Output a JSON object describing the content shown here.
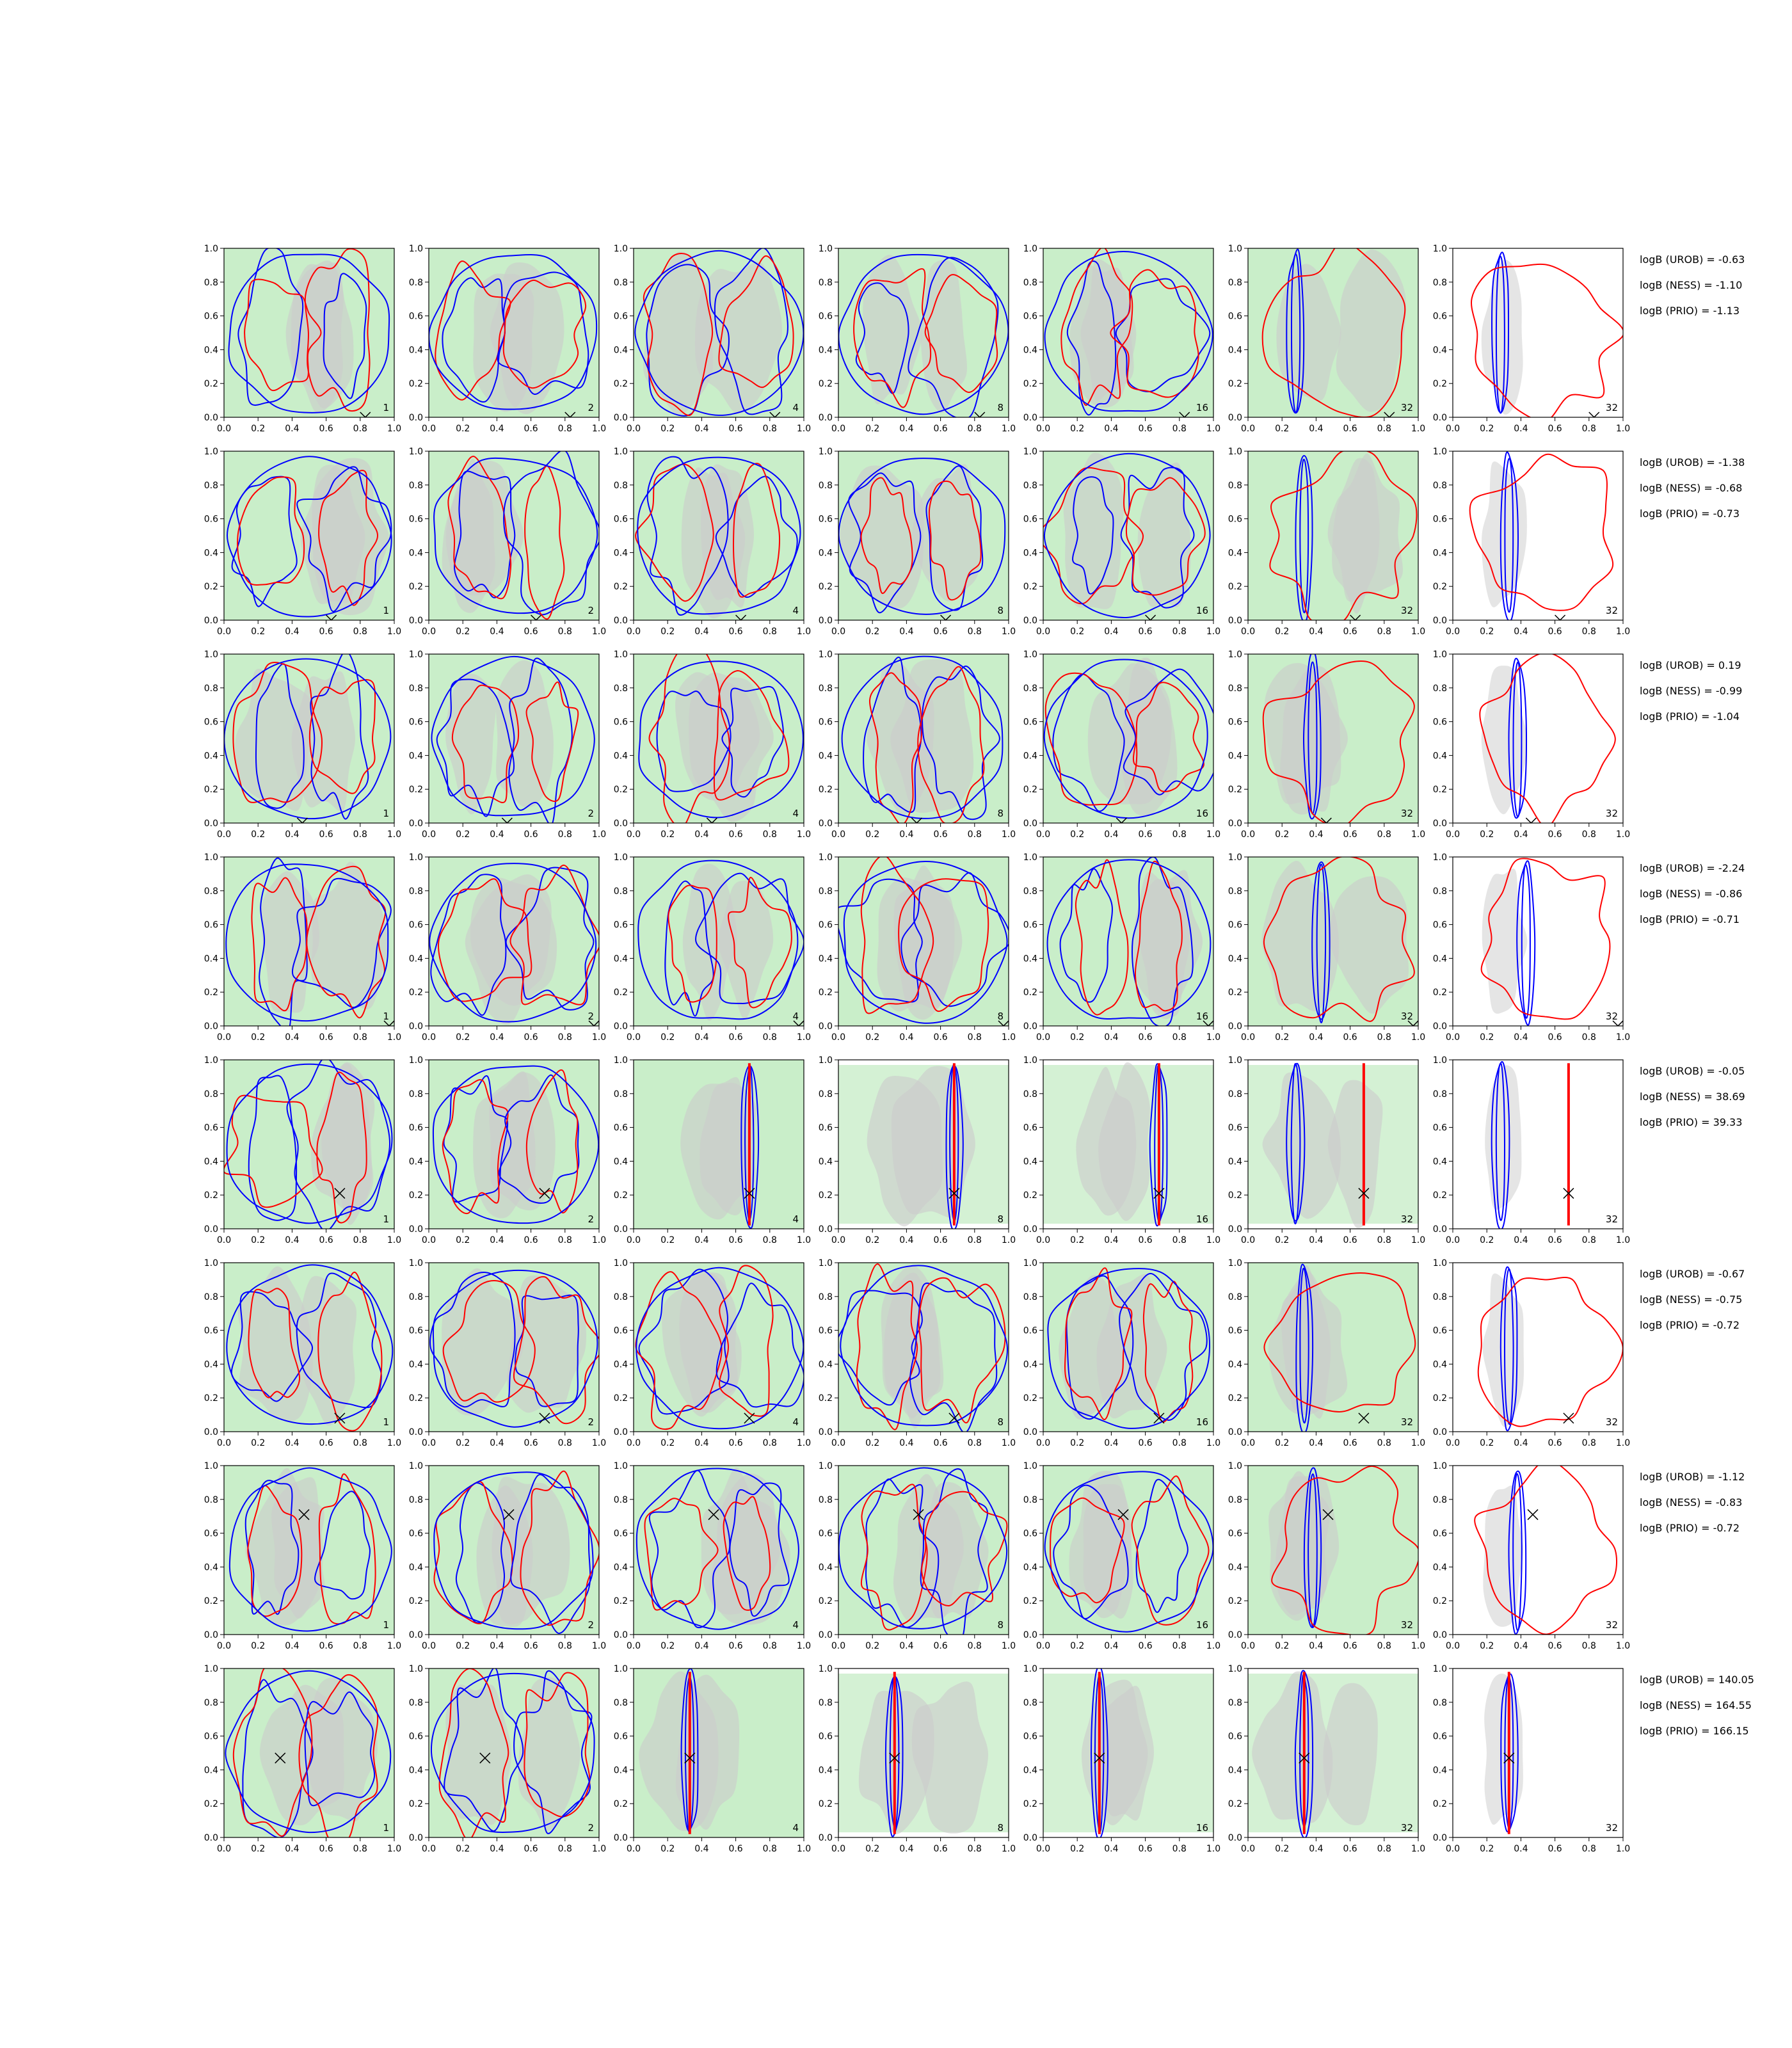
{
  "chart_data": {
    "type": "contour",
    "xlim": [
      0.0,
      1.0
    ],
    "ylim": [
      0.0,
      1.0
    ],
    "xticks": [
      "0.0",
      "0.2",
      "0.4",
      "0.6",
      "0.8",
      "1.0"
    ],
    "yticks": [
      "0.0",
      "0.2",
      "0.4",
      "0.6",
      "0.8",
      "1.0"
    ],
    "grid": false,
    "colors": {
      "blue": "#0000ff",
      "red": "#ff0000",
      "green_fill": "#c9eec9",
      "grey_fill": "#cccccc"
    },
    "column_labels": [
      "1",
      "2",
      "4",
      "8",
      "16",
      "32",
      "32"
    ],
    "rows": [
      {
        "marker": [
          0.83,
          0.0
        ],
        "bayes": [
          "logB (UROB) = -0.63",
          "logB (NESS) = -1.10",
          "logB (PRIO) = -1.13"
        ]
      },
      {
        "marker": [
          0.63,
          0.0
        ],
        "bayes": [
          "logB (UROB) = -1.38",
          "logB (NESS) = -0.68",
          "logB (PRIO) = -0.73"
        ]
      },
      {
        "marker": [
          0.46,
          0.0
        ],
        "bayes": [
          "logB (UROB) = 0.19",
          "logB (NESS) = -0.99",
          "logB (PRIO) = -1.04"
        ]
      },
      {
        "marker": [
          0.97,
          0.0
        ],
        "bayes": [
          "logB (UROB) = -2.24",
          "logB (NESS) = -0.86",
          "logB (PRIO) = -0.71"
        ]
      },
      {
        "marker": [
          0.68,
          0.21
        ],
        "bayes": [
          "logB (UROB) = -0.05",
          "logB (NESS) = 38.69",
          "logB (PRIO) = 39.33"
        ]
      },
      {
        "marker": [
          0.68,
          0.08
        ],
        "bayes": [
          "logB (UROB) = -0.67",
          "logB (NESS) = -0.75",
          "logB (PRIO) = -0.72"
        ]
      },
      {
        "marker": [
          0.47,
          0.71
        ],
        "bayes": [
          "logB (UROB) = -1.12",
          "logB (NESS) = -0.83",
          "logB (PRIO) = -0.72"
        ]
      },
      {
        "marker": [
          0.33,
          0.47
        ],
        "bayes": [
          "logB (UROB) = 140.05",
          "logB (NESS) = 164.55",
          "logB (PRIO) = 166.15"
        ]
      }
    ]
  }
}
